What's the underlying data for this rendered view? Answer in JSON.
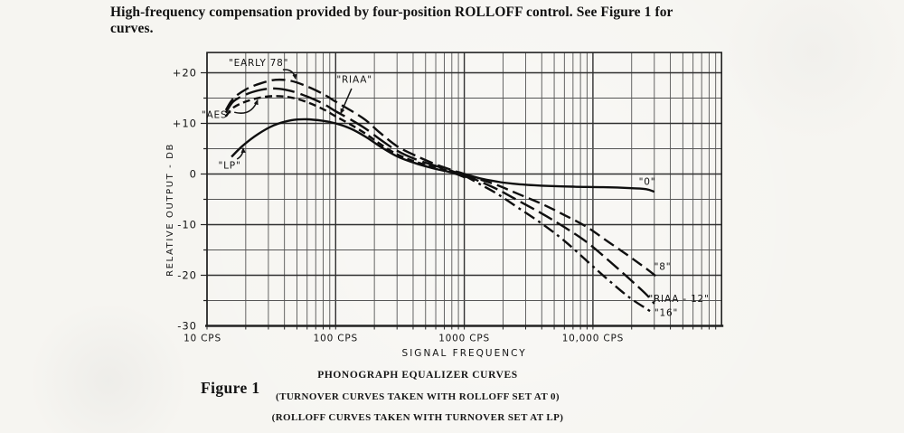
{
  "page": {
    "header_lines": [
      "High-frequency compensation provided by four-position ROLLOFF control.  See Figure 1 for",
      "curves."
    ],
    "figure_label": "Figure 1",
    "captions": [
      "PHONOGRAPH EQUALIZER CURVES",
      "(TURNOVER CURVES TAKEN WITH ROLLOFF SET AT 0)",
      "(ROLLOFF CURVES TAKEN WITH TURNOVER SET AT LP)"
    ]
  },
  "colors": {
    "ink": "#141414",
    "curve": "#0f0f0f",
    "grid_minor": "#555555",
    "grid_major": "#303030",
    "frame": "#222222"
  },
  "chart_data": {
    "type": "line",
    "title": "PHONOGRAPH EQUALIZER CURVES",
    "xlabel": "SIGNAL  FREQUENCY",
    "ylabel": "RELATIVE  OUTPUT - DB",
    "x_scale": "log",
    "x_unit": "CPS",
    "xlim": [
      10,
      100000
    ],
    "ylim_db": [
      -30,
      24
    ],
    "grid": "log-x minor lines 2-9 each decade; horizontal lines every 5 dB",
    "x_ticks": [
      {
        "f": 10,
        "label": "10 CPS"
      },
      {
        "f": 100,
        "label": "100 CPS"
      },
      {
        "f": 1000,
        "label": "1000 CPS"
      },
      {
        "f": 10000,
        "label": "10,000 CPS"
      }
    ],
    "y_ticks": [
      {
        "db": 20,
        "label": "+20"
      },
      {
        "db": 10,
        "label": "+10"
      },
      {
        "db": 0,
        "label": "0"
      },
      {
        "db": -10,
        "label": "-10"
      },
      {
        "db": -20,
        "label": "-20"
      },
      {
        "db": -30,
        "label": "-30"
      }
    ],
    "series": [
      {
        "name": "EARLY 78",
        "group": "turnover",
        "line": "dashed",
        "dash": "15 6",
        "points": [
          [
            14,
            12.6
          ],
          [
            16,
            14.9
          ],
          [
            20,
            16.7
          ],
          [
            26,
            17.9
          ],
          [
            34,
            18.6
          ],
          [
            45,
            18.4
          ],
          [
            60,
            17.3
          ],
          [
            80,
            15.8
          ],
          [
            100,
            14.3
          ],
          [
            130,
            12.6
          ],
          [
            170,
            10.7
          ],
          [
            220,
            8.2
          ],
          [
            300,
            5.5
          ],
          [
            420,
            3.6
          ],
          [
            600,
            1.9
          ],
          [
            800,
            0.8
          ],
          [
            1080,
            -0.4
          ]
        ]
      },
      {
        "name": "RIAA",
        "group": "turnover",
        "line": "long-dashed",
        "dash": "24 7",
        "points": [
          [
            14,
            12.1
          ],
          [
            16,
            14.3
          ],
          [
            20,
            15.7
          ],
          [
            26,
            16.6
          ],
          [
            34,
            16.9
          ],
          [
            45,
            16.4
          ],
          [
            60,
            15.3
          ],
          [
            80,
            13.9
          ],
          [
            100,
            12.4
          ],
          [
            130,
            10.8
          ],
          [
            170,
            9.0
          ],
          [
            220,
            6.9
          ],
          [
            300,
            4.6
          ],
          [
            420,
            2.9
          ],
          [
            600,
            1.6
          ],
          [
            800,
            0.6
          ],
          [
            1060,
            -0.5
          ]
        ]
      },
      {
        "name": "AES",
        "group": "turnover",
        "line": "short-dashed",
        "dash": "8 4.5",
        "points": [
          [
            14,
            11.4
          ],
          [
            16,
            13.1
          ],
          [
            20,
            14.3
          ],
          [
            26,
            15.1
          ],
          [
            34,
            15.4
          ],
          [
            45,
            15.1
          ],
          [
            60,
            14.2
          ],
          [
            80,
            12.8
          ],
          [
            100,
            11.4
          ],
          [
            130,
            9.8
          ],
          [
            170,
            8.0
          ],
          [
            220,
            6.0
          ],
          [
            300,
            3.9
          ],
          [
            420,
            2.4
          ],
          [
            600,
            1.3
          ],
          [
            800,
            0.4
          ],
          [
            1040,
            -0.6
          ]
        ]
      },
      {
        "name": "LP",
        "group": "turnover",
        "line": "solid",
        "dash": null,
        "points": [
          [
            15.5,
            3.4
          ],
          [
            19,
            5.6
          ],
          [
            25,
            7.9
          ],
          [
            33,
            9.6
          ],
          [
            45,
            10.6
          ],
          [
            60,
            10.8
          ],
          [
            80,
            10.5
          ],
          [
            100,
            10.0
          ],
          [
            130,
            9.0
          ],
          [
            170,
            7.4
          ],
          [
            220,
            5.5
          ],
          [
            300,
            3.5
          ],
          [
            420,
            2.1
          ],
          [
            600,
            1.0
          ],
          [
            800,
            0.3
          ],
          [
            1020,
            -0.7
          ]
        ]
      },
      {
        "name": "0",
        "group": "rolloff",
        "line": "solid",
        "dash": null,
        "points": [
          [
            900,
            0.4
          ],
          [
            1100,
            -0.3
          ],
          [
            1400,
            -1.0
          ],
          [
            1900,
            -1.6
          ],
          [
            2600,
            -2.0
          ],
          [
            4000,
            -2.3
          ],
          [
            7000,
            -2.5
          ],
          [
            12000,
            -2.6
          ],
          [
            20000,
            -2.8
          ],
          [
            26000,
            -3.0
          ],
          [
            30000,
            -3.5
          ]
        ]
      },
      {
        "name": "8",
        "group": "rolloff",
        "line": "dashed",
        "dash": "13 6",
        "points": [
          [
            1000,
            -0.1
          ],
          [
            1300,
            -1.0
          ],
          [
            1800,
            -2.2
          ],
          [
            2600,
            -3.9
          ],
          [
            4000,
            -5.9
          ],
          [
            6000,
            -8.1
          ],
          [
            9000,
            -10.5
          ],
          [
            13000,
            -13.3
          ],
          [
            19000,
            -16.2
          ],
          [
            26000,
            -18.7
          ],
          [
            31000,
            -20.2
          ]
        ]
      },
      {
        "name": "RIAA-12",
        "group": "rolloff",
        "line": "long-dashed",
        "dash": "17 6",
        "points": [
          [
            1000,
            -0.2
          ],
          [
            1300,
            -1.4
          ],
          [
            1800,
            -3.0
          ],
          [
            2600,
            -5.2
          ],
          [
            4000,
            -7.8
          ],
          [
            6000,
            -10.5
          ],
          [
            9000,
            -13.5
          ],
          [
            13000,
            -16.9
          ],
          [
            19000,
            -20.6
          ],
          [
            26000,
            -23.8
          ],
          [
            30000,
            -25.6
          ]
        ]
      },
      {
        "name": "16",
        "group": "rolloff",
        "line": "dash-dot",
        "dash": "13 5 3 5",
        "points": [
          [
            1000,
            -0.3
          ],
          [
            1300,
            -1.9
          ],
          [
            1800,
            -3.9
          ],
          [
            2600,
            -6.6
          ],
          [
            4000,
            -9.8
          ],
          [
            6000,
            -13.2
          ],
          [
            9000,
            -17.2
          ],
          [
            13000,
            -20.8
          ],
          [
            19000,
            -24.3
          ],
          [
            26000,
            -26.6
          ],
          [
            29500,
            -27.5
          ]
        ]
      }
    ],
    "annotations": [
      {
        "text": "\"EARLY 78\"",
        "f": 25.2,
        "db": 22.0,
        "anchor": "middle",
        "arrow": {
          "f1": 38.9,
          "db1": 20.6,
          "f2": 48.8,
          "db2": 18.8,
          "bend": 0.45
        }
      },
      {
        "text": "\"RIAA\"",
        "f": 140,
        "db": 18.7,
        "anchor": "middle",
        "arrow": {
          "f1": 133,
          "db1": 16.9,
          "f2": 109.7,
          "db2": 12.0,
          "bend": 0
        }
      },
      {
        "text": "\"AES\"",
        "f": 11.95,
        "db": 11.7,
        "anchor": "middle",
        "arrow": {
          "f1": 16.3,
          "db1": 12.2,
          "f2": 24.7,
          "db2": 14.6,
          "bend": -0.45
        }
      },
      {
        "text": "\"LP\"",
        "f": 15.0,
        "db": 1.7,
        "anchor": "middle",
        "arrow": {
          "f1": 17.1,
          "db1": 2.95,
          "f2": 19.1,
          "db2": 5.1,
          "bend": -0.3
        }
      },
      {
        "text": "\"0\"",
        "f": 26440,
        "db": -1.5,
        "anchor": "middle",
        "arrow": null
      },
      {
        "text": "\"8\"",
        "f": 34830,
        "db": -18.3,
        "anchor": "middle",
        "arrow": null
      },
      {
        "text": "\"RIAA - 12\"",
        "f": 46600,
        "db": -24.6,
        "anchor": "middle",
        "arrow": null
      },
      {
        "text": "\"16\"",
        "f": 37150,
        "db": -27.4,
        "anchor": "middle",
        "arrow": null
      }
    ]
  }
}
